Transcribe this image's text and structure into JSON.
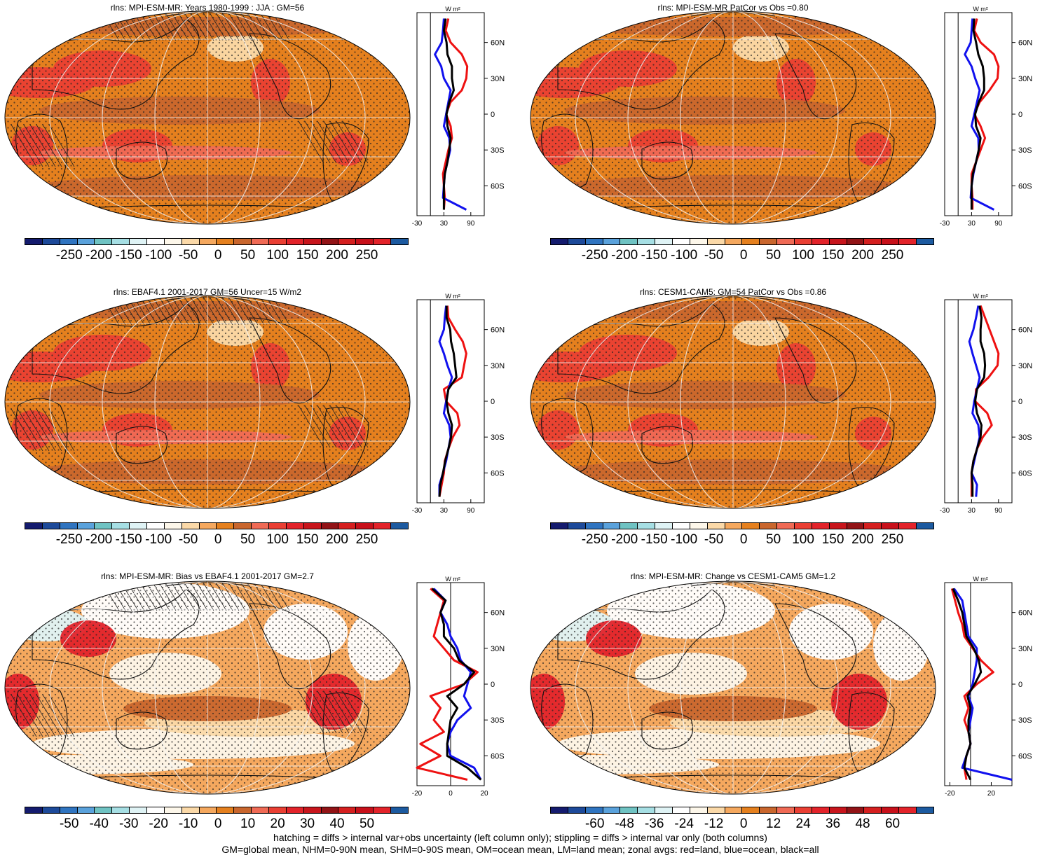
{
  "panels": [
    {
      "title": "rlns: MPI-ESM-MR: Years 1980-1999 : JJA : GM=56",
      "colorbar": {
        "labels": [
          "-250",
          "-200",
          "-150",
          "-100",
          "-50",
          "0",
          "50",
          "100",
          "150",
          "200",
          "250"
        ],
        "colors": [
          "#141b6e",
          "#1d4a9a",
          "#2f74c0",
          "#5aa2dc",
          "#6fc3c3",
          "#a6dfe4",
          "#dff3f5",
          "#ffffff",
          "#fdf7ea",
          "#fbd9a8",
          "#f5a85e",
          "#e5801e",
          "#c9662d",
          "#f06a55",
          "#ea3f33",
          "#e3232a",
          "#c8151c",
          "#921316",
          "#d51f1f",
          "#c8101a",
          "#e3232a",
          "#1c5aa0"
        ]
      },
      "zonal": {
        "unit": "W m²",
        "xlim": [
          -30,
          120
        ],
        "xticks": [
          "-30",
          "30",
          "90"
        ],
        "yticks": [
          "60N",
          "30N",
          "0",
          "30S",
          "60S"
        ],
        "lat": [
          80,
          70,
          60,
          50,
          40,
          30,
          20,
          10,
          0,
          -10,
          -20,
          -30,
          -40,
          -50,
          -60,
          -70,
          -80
        ],
        "land": [
          40,
          34,
          45,
          70,
          82,
          80,
          70,
          45,
          35,
          45,
          48,
          40,
          null,
          28,
          30,
          32,
          30
        ],
        "ocean": [
          30,
          28,
          25,
          10,
          24,
          30,
          45,
          40,
          35,
          30,
          42,
          44,
          38,
          32,
          30,
          28,
          80
        ],
        "all": [
          34,
          30,
          36,
          38,
          48,
          48,
          52,
          42,
          36,
          38,
          45,
          42,
          38,
          32,
          30,
          30,
          30
        ]
      }
    },
    {
      "title": "rlns: MPI-ESM-MR PatCor vs Obs =0.80",
      "colorbar": {
        "labels": [
          "-250",
          "-200",
          "-150",
          "-100",
          "-50",
          "0",
          "50",
          "100",
          "150",
          "200",
          "250"
        ],
        "colors": [
          "#141b6e",
          "#1d4a9a",
          "#2f74c0",
          "#5aa2dc",
          "#6fc3c3",
          "#a6dfe4",
          "#dff3f5",
          "#ffffff",
          "#fdf7ea",
          "#fbd9a8",
          "#f5a85e",
          "#e5801e",
          "#c9662d",
          "#f06a55",
          "#ea3f33",
          "#e3232a",
          "#c8151c",
          "#921316",
          "#d51f1f",
          "#c8101a",
          "#e3232a",
          "#1c5aa0"
        ]
      },
      "zonal": {
        "unit": "W m²",
        "xlim": [
          -30,
          120
        ],
        "xticks": [
          "-30",
          "30",
          "90"
        ],
        "yticks": [
          "60N",
          "30N",
          "0",
          "30S",
          "60S"
        ],
        "lat": [
          80,
          70,
          60,
          50,
          40,
          30,
          20,
          10,
          0,
          -10,
          -20,
          -30,
          -40,
          -50,
          -60,
          -70,
          -80
        ],
        "land": [
          42,
          36,
          50,
          80,
          90,
          88,
          70,
          48,
          36,
          50,
          60,
          50,
          40,
          30,
          30,
          32,
          32
        ],
        "ocean": [
          32,
          30,
          28,
          15,
          30,
          38,
          48,
          42,
          36,
          30,
          45,
          46,
          40,
          34,
          30,
          28,
          80
        ],
        "all": [
          36,
          34,
          40,
          45,
          55,
          58,
          58,
          46,
          38,
          40,
          50,
          46,
          40,
          33,
          30,
          30,
          30
        ]
      }
    },
    {
      "title": "rlns: EBAF4.1 2001-2017 GM=56 Uncer=15 W/m2",
      "colorbar": {
        "labels": [
          "-250",
          "-200",
          "-150",
          "-100",
          "-50",
          "0",
          "50",
          "100",
          "150",
          "200",
          "250"
        ],
        "colors": [
          "#141b6e",
          "#1d4a9a",
          "#2f74c0",
          "#5aa2dc",
          "#6fc3c3",
          "#a6dfe4",
          "#dff3f5",
          "#ffffff",
          "#fdf7ea",
          "#fbd9a8",
          "#f5a85e",
          "#e5801e",
          "#c9662d",
          "#f06a55",
          "#ea3f33",
          "#e3232a",
          "#c8151c",
          "#921316",
          "#d51f1f",
          "#c8101a",
          "#e3232a",
          "#1c5aa0"
        ]
      },
      "zonal": {
        "unit": "W m²",
        "xlim": [
          -30,
          120
        ],
        "xticks": [
          "-30",
          "30",
          "90"
        ],
        "yticks": [
          "60N",
          "30N",
          "0",
          "30S",
          "60S"
        ],
        "lat": [
          80,
          70,
          60,
          50,
          40,
          30,
          20,
          10,
          0,
          -10,
          -20,
          -30,
          -40,
          -50,
          -60,
          -70,
          -80
        ],
        "land": [
          38,
          40,
          55,
          72,
          80,
          75,
          70,
          30,
          35,
          60,
          65,
          50,
          40,
          32,
          30,
          25,
          20
        ],
        "ocean": [
          35,
          32,
          30,
          20,
          30,
          38,
          48,
          40,
          35,
          30,
          42,
          45,
          40,
          35,
          28,
          20,
          20
        ],
        "all": [
          36,
          36,
          44,
          46,
          52,
          55,
          58,
          40,
          36,
          40,
          48,
          46,
          40,
          33,
          28,
          22,
          20
        ]
      }
    },
    {
      "title": "rlns: CESM1-CAM5: GM=54 PatCor vs Obs =0.86",
      "colorbar": {
        "labels": [
          "-250",
          "-200",
          "-150",
          "-100",
          "-50",
          "0",
          "50",
          "100",
          "150",
          "200",
          "250"
        ],
        "colors": [
          "#141b6e",
          "#1d4a9a",
          "#2f74c0",
          "#5aa2dc",
          "#6fc3c3",
          "#a6dfe4",
          "#dff3f5",
          "#ffffff",
          "#fdf7ea",
          "#fbd9a8",
          "#f5a85e",
          "#e5801e",
          "#c9662d",
          "#f06a55",
          "#ea3f33",
          "#e3232a",
          "#c8151c",
          "#921316",
          "#d51f1f",
          "#c8101a",
          "#e3232a",
          "#1c5aa0"
        ]
      },
      "zonal": {
        "unit": "W m²",
        "xlim": [
          -30,
          120
        ],
        "xticks": [
          "-30",
          "30",
          "90"
        ],
        "yticks": [
          "60N",
          "30N",
          "0",
          "30S",
          "60S"
        ],
        "lat": [
          80,
          70,
          60,
          50,
          40,
          30,
          20,
          10,
          0,
          -10,
          -20,
          -30,
          -40,
          -50,
          -60,
          -70,
          -80
        ],
        "land": [
          50,
          60,
          70,
          80,
          90,
          88,
          68,
          40,
          38,
          65,
          75,
          55,
          42,
          34,
          30,
          30,
          30
        ],
        "ocean": [
          45,
          40,
          34,
          25,
          32,
          40,
          48,
          42,
          36,
          32,
          45,
          48,
          42,
          36,
          30,
          42,
          40
        ],
        "all": [
          48,
          52,
          50,
          50,
          58,
          60,
          58,
          42,
          38,
          42,
          52,
          50,
          42,
          34,
          30,
          32,
          32
        ]
      }
    },
    {
      "title": "rlns: MPI-ESM-MR: Bias vs EBAF4.1 2001-2017 GM=2.7",
      "colorbar": {
        "labels": [
          "-50",
          "-40",
          "-30",
          "-20",
          "-10",
          "0",
          "10",
          "20",
          "30",
          "40",
          "50"
        ],
        "colors": [
          "#141b6e",
          "#1d4a9a",
          "#2f74c0",
          "#5aa2dc",
          "#6fc3c3",
          "#a6dfe4",
          "#dff3f5",
          "#ffffff",
          "#fdf7ea",
          "#fbd9a8",
          "#f5a85e",
          "#e5801e",
          "#c9662d",
          "#f06a55",
          "#ea3f33",
          "#e3232a",
          "#c8151c",
          "#921316",
          "#d51f1f",
          "#c8101a",
          "#e3232a",
          "#1c5aa0"
        ]
      },
      "zonal": {
        "unit": "W m²",
        "xlim": [
          -20,
          20
        ],
        "xticks": [
          "-20",
          "0",
          "20"
        ],
        "yticks": [
          "60N",
          "30N",
          "0",
          "30S",
          "60S"
        ],
        "lat": [
          80,
          70,
          60,
          50,
          40,
          30,
          20,
          10,
          0,
          -10,
          -20,
          -30,
          -40,
          -50,
          -60,
          -70,
          -80
        ],
        "land": [
          -12,
          -4,
          -6,
          -8,
          -10,
          -4,
          2,
          16,
          8,
          -12,
          -6,
          -10,
          -4,
          -18,
          -6,
          -20,
          10
        ],
        "ocean": [
          -10,
          -3,
          -6,
          -2,
          0,
          4,
          6,
          12,
          10,
          8,
          12,
          4,
          0,
          -2,
          0,
          14,
          18
        ],
        "all": [
          -11,
          -3,
          -6,
          -4,
          -4,
          2,
          5,
          14,
          8,
          -2,
          4,
          0,
          -1,
          -2,
          -2,
          10,
          18
        ]
      }
    },
    {
      "title": "rlns: MPI-ESM-MR: Change vs CESM1-CAM5 GM=1.2",
      "colorbar": {
        "labels": [
          "-60",
          "-48",
          "-36",
          "-24",
          "-12",
          "0",
          "12",
          "24",
          "36",
          "48",
          "60"
        ],
        "colors": [
          "#141b6e",
          "#1d4a9a",
          "#2f74c0",
          "#5aa2dc",
          "#6fc3c3",
          "#a6dfe4",
          "#dff3f5",
          "#ffffff",
          "#fdf7ea",
          "#fbd9a8",
          "#f5a85e",
          "#e5801e",
          "#c9662d",
          "#f06a55",
          "#ea3f33",
          "#e3232a",
          "#c8151c",
          "#921316",
          "#d51f1f",
          "#c8101a",
          "#e3232a",
          "#1c5aa0"
        ]
      },
      "zonal": {
        "unit": "W m²",
        "xlim": [
          -25,
          40
        ],
        "xticks": [
          "-20",
          "20"
        ],
        "yticks": [
          "60N",
          "30N",
          "0",
          "30S",
          "60S"
        ],
        "lat": [
          80,
          70,
          60,
          50,
          40,
          30,
          20,
          10,
          0,
          -10,
          -20,
          -30,
          -40,
          -50,
          -60,
          -70,
          -80
        ],
        "land": [
          -18,
          -15,
          -12,
          -8,
          -6,
          2,
          10,
          22,
          6,
          -6,
          -2,
          -6,
          -2,
          0,
          -4,
          -6,
          -4
        ],
        "ocean": [
          -16,
          -8,
          -6,
          -4,
          -2,
          6,
          6,
          4,
          2,
          -2,
          2,
          0,
          -2,
          0,
          -4,
          -8,
          40
        ],
        "all": [
          -17,
          -12,
          -8,
          -6,
          -4,
          3,
          8,
          10,
          4,
          -3,
          0,
          -2,
          -2,
          0,
          -4,
          -6,
          0
        ]
      }
    }
  ],
  "footer": {
    "line1": "hatching = diffs > internal var+obs uncertainty (left column only); stippling = diffs > internal var only (both columns)",
    "line2": "GM=global mean, NHM=0-90N mean, SHM=0-90S mean, OM=ocean mean, LM=land mean; zonal avgs: red=land, blue=ocean, black=all"
  }
}
